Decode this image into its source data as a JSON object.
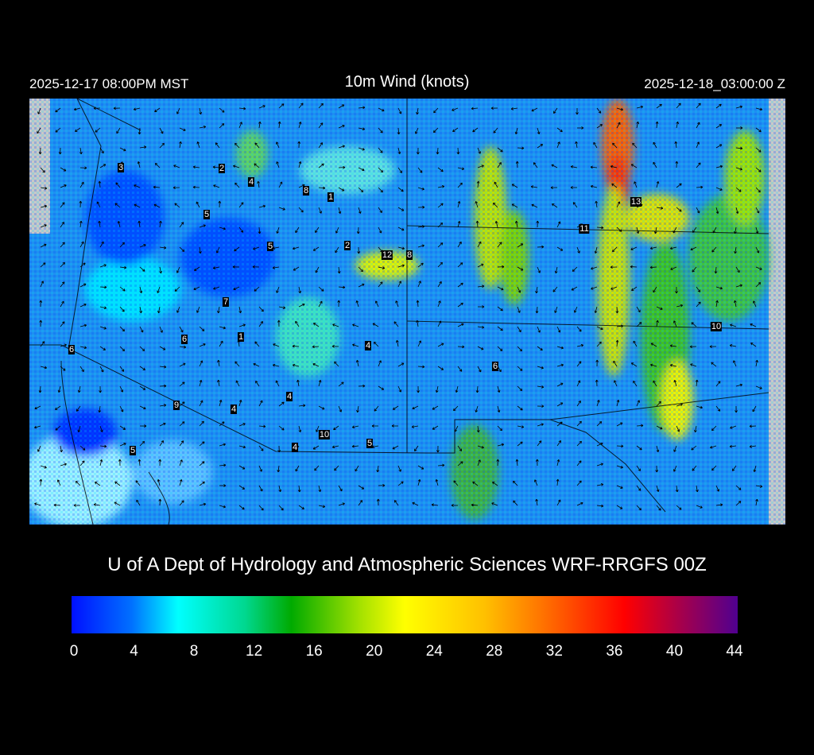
{
  "header": {
    "local_time": "2025-12-17 08:00PM MST",
    "title": "10m Wind (knots)",
    "valid_time": "2025-12-18_03:00:00 Z"
  },
  "map": {
    "station_labels": [
      "3",
      "2",
      "4",
      "8",
      "1",
      "5",
      "5",
      "2",
      "12",
      "8",
      "13",
      "11",
      "7",
      "6",
      "1",
      "4",
      "10",
      "6",
      "6",
      "4",
      "9",
      "4",
      "10",
      "5",
      "4",
      "5"
    ]
  },
  "credit": "U of A Dept of Hydrology and Atmospheric Sciences WRF-RRGFS 00Z",
  "colorbar": {
    "ticks": [
      "0",
      "4",
      "8",
      "12",
      "16",
      "20",
      "24",
      "28",
      "32",
      "36",
      "40",
      "44"
    ],
    "range": [
      0,
      44
    ],
    "colors": [
      "#0010ff",
      "#00ffff",
      "#00aa00",
      "#ffff00",
      "#ff7000",
      "#ff0000",
      "#500090"
    ]
  }
}
